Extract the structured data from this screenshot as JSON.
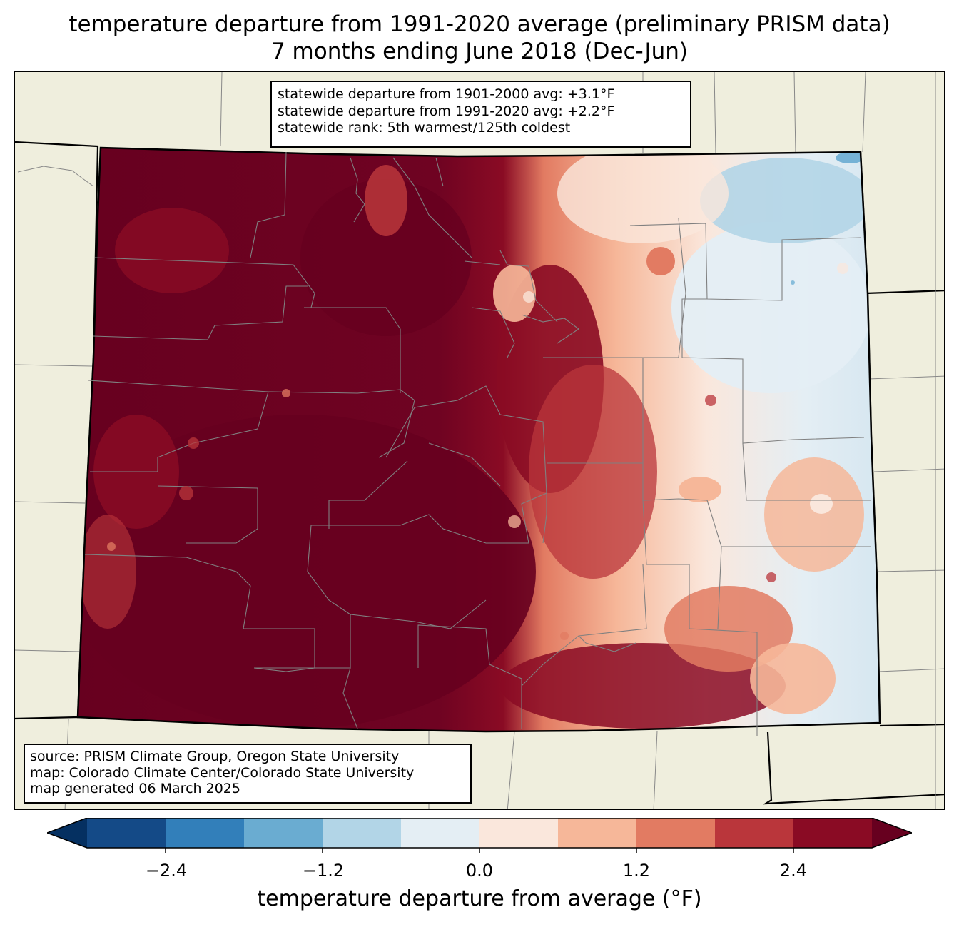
{
  "title": {
    "line1": "temperature departure from 1991-2020 average (preliminary PRISM data)",
    "line2": "7 months ending June 2018 (Dec-Jun)"
  },
  "stats": {
    "line1": "statewide departure from 1901-2000 avg: +3.1°F",
    "line2": "statewide departure from 1991-2020 avg: +2.2°F",
    "line3": "statewide rank: 5th warmest/125th coldest"
  },
  "source": {
    "line1": "source: PRISM Climate Group, Oregon State University",
    "line2": "map: Colorado Climate Center/Colorado State University",
    "line3": "map generated 06 March 2025"
  },
  "colorbar": {
    "label": "temperature departure from average (°F)",
    "ticks": [
      "−2.4",
      "−1.2",
      "0.0",
      "1.2",
      "2.4"
    ],
    "colors": [
      "#053061",
      "#144a87",
      "#327fba",
      "#6aacd1",
      "#b2d5e7",
      "#e4eef4",
      "#fae7dc",
      "#f6b799",
      "#e27b62",
      "#ba363b",
      "#8a0b24",
      "#67001f"
    ]
  },
  "palette": {
    "land": "#efeedd",
    "border": "#000000",
    "county": "#808080"
  }
}
